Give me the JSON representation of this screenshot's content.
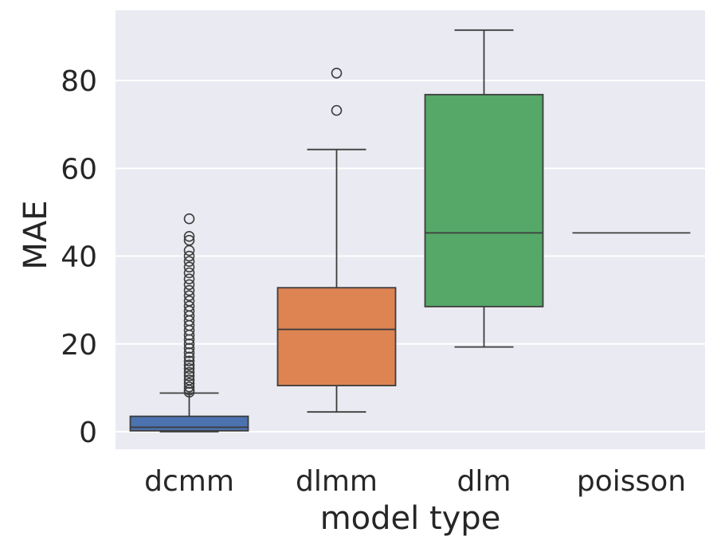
{
  "chart_data": {
    "type": "box",
    "title": "",
    "xlabel": "model type",
    "ylabel": "MAE",
    "ylim": [
      -4,
      96
    ],
    "yticks": [
      0,
      20,
      40,
      60,
      80
    ],
    "grid": true,
    "background": "#EAEAF2",
    "gridColor": "#FFFFFF",
    "lineColor": "#3D3D3D",
    "categories": [
      "dcmm",
      "dlmm",
      "dlm",
      "poisson"
    ],
    "boxes": [
      {
        "category": "dcmm",
        "color": "#4C72B0",
        "min": 0,
        "q1": 0.2,
        "median": 1.0,
        "q3": 3.5,
        "max": 8.8,
        "outliers": [
          9.0,
          9.5,
          10.2,
          11.0,
          11.8,
          12.7,
          13.5,
          14.4,
          15.2,
          16.1,
          17.0,
          18.0,
          19.0,
          20.0,
          21.0,
          22.0,
          23.1,
          24.2,
          25.3,
          26.4,
          27.5,
          28.6,
          29.8,
          31.0,
          32.2,
          33.5,
          34.8,
          36.2,
          37.5,
          38.8,
          40.0,
          41.3,
          43.6,
          44.5,
          48.5
        ]
      },
      {
        "category": "dlmm",
        "color": "#DD8452",
        "min": 4.5,
        "q1": 10.5,
        "median": 23.3,
        "q3": 32.8,
        "max": 64.3,
        "outliers": [
          73.2,
          81.7
        ]
      },
      {
        "category": "dlm",
        "color": "#55A868",
        "min": 19.3,
        "q1": 28.5,
        "median": 45.3,
        "q3": 76.8,
        "max": 91.5,
        "outliers": []
      },
      {
        "category": "poisson",
        "color": "#8172B3",
        "min": 45.3,
        "q1": 45.3,
        "median": 45.3,
        "q3": 45.3,
        "max": 45.3,
        "outliers": []
      }
    ]
  }
}
